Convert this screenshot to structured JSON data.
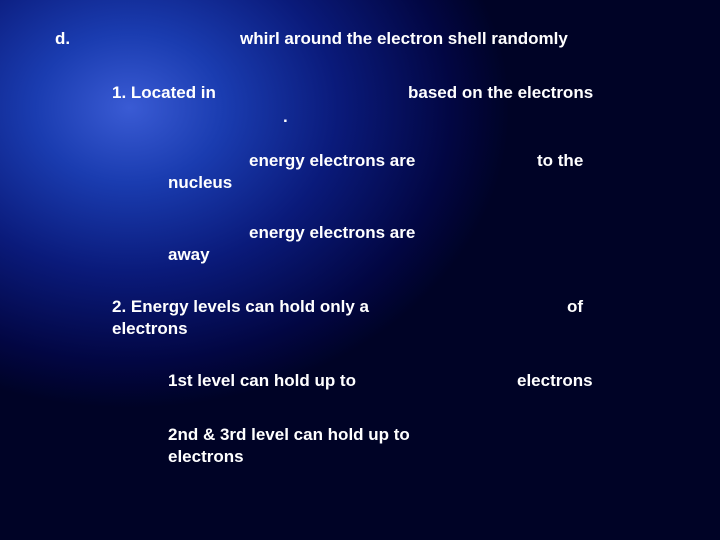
{
  "slide": {
    "background": {
      "type": "radial-gradient",
      "center": "18% 20%",
      "stops": [
        "#3a5bd4",
        "#1a3cb0",
        "#0a1a7a",
        "#020642",
        "#000326"
      ]
    },
    "text_color": "#ffffff",
    "font_family": "Verdana",
    "font_weight": "bold",
    "font_size_pt": 13,
    "d_label": "d.",
    "whirl": "whirl around the electron shell randomly",
    "located": "1. Located in",
    "based": "based on the electrons",
    "period": ".",
    "energy1": "energy electrons are",
    "tothe": "to the",
    "nucleus1": "nucleus",
    "energy2": "energy electrons are",
    "away": "away",
    "energylevels": "2. Energy levels can hold only a",
    "of": "of",
    "electrons_word": "electrons",
    "first": "1st level can hold up to",
    "electrons2": "electrons",
    "second": "2nd & 3rd level can hold up to",
    "electrons3": "electrons"
  }
}
